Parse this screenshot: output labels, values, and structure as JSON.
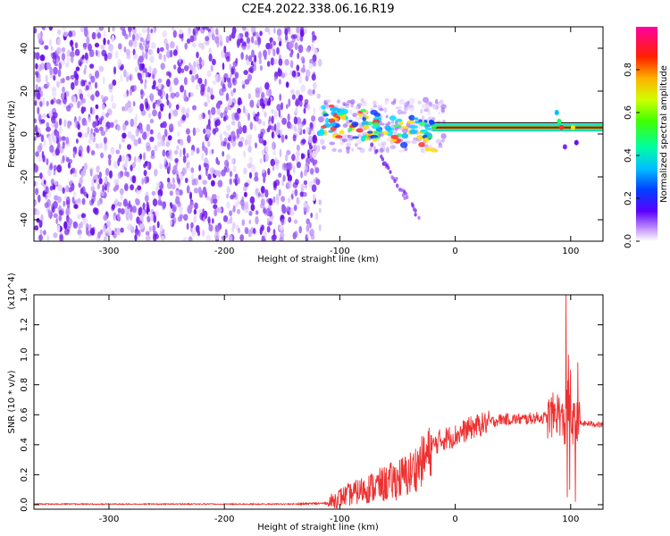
{
  "figure_title": "C2E4.2022.338.06.16.R19",
  "colors": {
    "snr_line": "#ee3030",
    "noise_purple": "#7a1fe0",
    "axis": "#000000"
  },
  "chart_data": [
    {
      "type": "heatmap",
      "title": "",
      "xlabel": "Height of straight line (km)",
      "ylabel": "Frequency (Hz)",
      "xlim": [
        -365,
        128
      ],
      "ylim": [
        -50,
        50
      ],
      "x_ticks": [
        -300,
        -200,
        -100,
        0,
        100
      ],
      "x_tick_labels": [
        "-300",
        "-200",
        "-100",
        "0",
        "100"
      ],
      "y_ticks": [
        -40,
        -20,
        0,
        20,
        40
      ],
      "y_tick_labels": [
        "-40",
        "-20",
        "0",
        "20",
        "40"
      ],
      "noise_region_x": [
        -365,
        -117
      ],
      "signal_band": {
        "frequency_hz": [
          2,
          4
        ],
        "x_range": [
          -117,
          128
        ],
        "description": "Narrow band near 0-4 Hz dominant from about -20 km upward"
      },
      "colorbar": {
        "label": "Normalized spectral amplitude",
        "range": [
          0,
          1
        ],
        "ticks": [
          0.0,
          0.2,
          0.4,
          0.6,
          0.8
        ],
        "tick_labels": [
          "0.0",
          "0.2",
          "0.4",
          "0.6",
          "0.8"
        ],
        "placement": "right"
      }
    },
    {
      "type": "line",
      "title": "",
      "xlabel": "Height of straight line (km)",
      "ylabel": "SNR (10 * v/v)",
      "y_multiplier": "(x10^4)",
      "xlim": [
        -365,
        128
      ],
      "ylim": [
        -0.03,
        1.4
      ],
      "x_ticks": [
        -300,
        -200,
        -100,
        0,
        100
      ],
      "x_tick_labels": [
        "-300",
        "-200",
        "-100",
        "0",
        "100"
      ],
      "y_ticks": [
        0.0,
        0.2,
        0.4,
        0.6,
        0.8,
        1.0,
        1.2,
        1.4
      ],
      "y_tick_labels": [
        "0.0",
        "0.2",
        "0.4",
        "0.6",
        "0.8",
        "1.0",
        "1.2",
        "1.4"
      ],
      "series": [
        {
          "color": "#ee3030",
          "x": [
            -365,
            -300,
            -250,
            -200,
            -150,
            -110,
            -100,
            -90,
            -80,
            -70,
            -60,
            -50,
            -40,
            -30,
            -25,
            -20,
            -15,
            -10,
            0,
            10,
            20,
            30,
            40,
            50,
            60,
            70,
            80,
            85,
            90,
            95,
            97,
            100,
            103,
            105,
            110,
            120,
            128
          ],
          "y": [
            0.0,
            0.0,
            0.0,
            0.0,
            0.0,
            0.01,
            0.05,
            0.07,
            0.1,
            0.12,
            0.14,
            0.17,
            0.2,
            0.28,
            0.32,
            0.38,
            0.42,
            0.44,
            0.46,
            0.5,
            0.53,
            0.55,
            0.57,
            0.57,
            0.57,
            0.58,
            0.58,
            0.6,
            0.62,
            0.5,
            0.7,
            0.56,
            0.54,
            0.55,
            0.54,
            0.54,
            0.53
          ]
        }
      ]
    }
  ]
}
